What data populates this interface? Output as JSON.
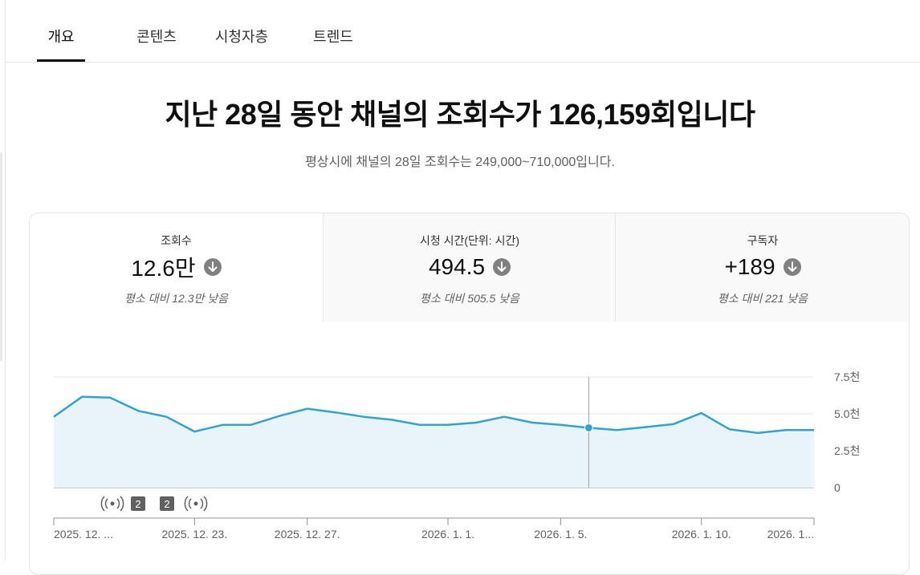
{
  "tabs": [
    {
      "label": "개요"
    },
    {
      "label": "콘텐츠"
    },
    {
      "label": "시청자층"
    },
    {
      "label": "트렌드"
    }
  ],
  "active_tab": "개요",
  "headline": "지난 28일 동안 채널의 조회수가 126,159회입니다",
  "subline": "평상시에 채널의 28일 조회수는 249,000~710,000입니다.",
  "metrics": [
    {
      "label": "조회수",
      "value": "12.6만",
      "compare": "평소 대비 12.3만 낮음",
      "trend": "down"
    },
    {
      "label": "시청 시간(단위: 시간)",
      "value": "494.5",
      "compare": "평소 대비 505.5 낮음",
      "trend": "down"
    },
    {
      "label": "구독자",
      "value": "+189",
      "compare": "평소 대비 221 낮음",
      "trend": "down"
    }
  ],
  "colors": {
    "line": "#30a3d2",
    "area": "#e9f4fa",
    "badge": "#606060",
    "icon": "#808080"
  },
  "markers": [
    {
      "type": "live-icon"
    },
    {
      "type": "badge",
      "label": "2"
    },
    {
      "type": "badge",
      "label": "2"
    },
    {
      "type": "live-icon"
    }
  ],
  "chart_data": {
    "type": "area",
    "y_ticks": [
      "7.5천",
      "5.0천",
      "2.5천",
      "0"
    ],
    "ylim": [
      0,
      7500
    ],
    "x_tick_labels": [
      "2025. 12. ...",
      "2025. 12. 23.",
      "2025. 12. 27.",
      "2026. 1. 1.",
      "2026. 1. 5.",
      "2026. 1. 10.",
      "2026. 1..."
    ],
    "values": [
      4800,
      6150,
      6100,
      5200,
      4800,
      3800,
      4250,
      4250,
      4850,
      5350,
      5100,
      4800,
      4600,
      4250,
      4250,
      4400,
      4800,
      4400,
      4250,
      4050,
      3900,
      4100,
      4300,
      5050,
      3950,
      3700,
      3900,
      3900
    ],
    "highlight_index": 19,
    "grid": true
  }
}
